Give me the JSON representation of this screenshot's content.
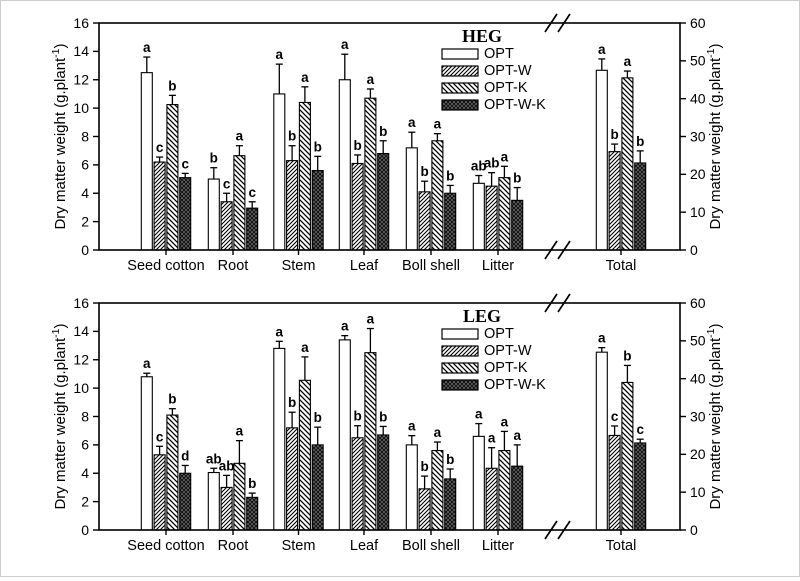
{
  "figure": {
    "background": "#ffffff",
    "border_color": "#cccccc",
    "line_color": "#000000"
  },
  "axes": {
    "left_label": {
      "main": "Dry matter weight (g.plant",
      "sup": "-1",
      "close": ")"
    },
    "right_label": {
      "main": "Dry matter weight (g.plant",
      "sup": "-1",
      "close": ")"
    },
    "left_ticks": [
      0,
      2,
      4,
      6,
      8,
      10,
      12,
      14,
      16
    ],
    "right_ticks": [
      0,
      10,
      20,
      30,
      40,
      50,
      60
    ],
    "left_range": [
      0,
      16
    ],
    "right_range": [
      0,
      60
    ],
    "axis_break_between": [
      "Litter",
      "Total"
    ]
  },
  "legend": {
    "items": [
      {
        "label": "OPT",
        "pattern": "solid-white"
      },
      {
        "label": "OPT-W",
        "pattern": "hatch-forward"
      },
      {
        "label": "OPT-K",
        "pattern": "hatch-back"
      },
      {
        "label": "OPT-W-K",
        "pattern": "dark-dotted"
      }
    ],
    "position": "upper-left-inside"
  },
  "chart_data": [
    {
      "type": "bar",
      "title": "HEG",
      "categories": [
        "Seed cotton",
        "Root",
        "Stem",
        "Leaf",
        "Boll shell",
        "Litter",
        "Total"
      ],
      "right_axis_category": "Total",
      "ylabel": "Dry matter weight (g.plant-1)",
      "y2label": "Dry matter weight (g.plant-1)",
      "ylim": [
        0,
        16
      ],
      "y2lim": [
        0,
        60
      ],
      "grid": false,
      "series": [
        {
          "name": "OPT",
          "values": [
            12.5,
            5.0,
            11.0,
            12.0,
            7.2,
            4.7,
            47.5
          ],
          "errors": [
            1.1,
            0.8,
            2.1,
            1.8,
            1.1,
            0.55,
            3.0
          ],
          "letters": [
            "a",
            "b",
            "a",
            "a",
            "a",
            "ab",
            "a"
          ]
        },
        {
          "name": "OPT-W",
          "values": [
            6.2,
            3.4,
            6.3,
            6.1,
            4.1,
            4.5,
            26.0
          ],
          "errors": [
            0.35,
            0.6,
            1.05,
            0.6,
            0.75,
            0.95,
            2.0
          ],
          "letters": [
            "c",
            "c",
            "b",
            "b",
            "b",
            "ab",
            "b"
          ]
        },
        {
          "name": "OPT-K",
          "values": [
            10.25,
            6.65,
            10.4,
            10.7,
            7.7,
            5.1,
            45.5
          ],
          "errors": [
            0.65,
            0.7,
            1.1,
            0.65,
            0.5,
            0.8,
            1.8
          ],
          "letters": [
            "b",
            "a",
            "a",
            "a",
            "a",
            "a",
            "a"
          ]
        },
        {
          "name": "OPT-W-K",
          "values": [
            5.1,
            2.95,
            5.6,
            6.8,
            4.0,
            3.5,
            23.0
          ],
          "errors": [
            0.3,
            0.45,
            1.0,
            0.9,
            0.55,
            0.9,
            3.2
          ],
          "letters": [
            "c",
            "c",
            "b",
            "b",
            "b",
            "b",
            "b"
          ]
        }
      ]
    },
    {
      "type": "bar",
      "title": "LEG",
      "categories": [
        "Seed cotton",
        "Root",
        "Stem",
        "Leaf",
        "Boll shell",
        "Litter",
        "Total"
      ],
      "right_axis_category": "Total",
      "ylabel": "Dry matter weight (g.plant-1)",
      "y2label": "Dry matter weight (g.plant-1)",
      "ylim": [
        0,
        16
      ],
      "y2lim": [
        0,
        60
      ],
      "grid": false,
      "series": [
        {
          "name": "OPT",
          "values": [
            10.8,
            4.05,
            12.8,
            13.4,
            6.0,
            6.6,
            47.0
          ],
          "errors": [
            0.25,
            0.3,
            0.5,
            0.3,
            0.65,
            0.9,
            1.2
          ],
          "letters": [
            "a",
            "ab",
            "a",
            "a",
            "a",
            "a",
            "a"
          ]
        },
        {
          "name": "OPT-W",
          "values": [
            5.3,
            3.0,
            7.2,
            6.5,
            2.9,
            4.35,
            25.0
          ],
          "errors": [
            0.6,
            0.85,
            1.1,
            0.85,
            0.9,
            1.45,
            2.5
          ],
          "letters": [
            "c",
            "ab",
            "b",
            "b",
            "b",
            "a",
            "c"
          ]
        },
        {
          "name": "OPT-K",
          "values": [
            8.1,
            4.7,
            10.55,
            12.5,
            5.6,
            5.6,
            39.0
          ],
          "errors": [
            0.45,
            1.6,
            1.65,
            1.7,
            0.6,
            1.35,
            4.5
          ],
          "letters": [
            "b",
            "a",
            "a",
            "a",
            "a",
            "a",
            "b"
          ]
        },
        {
          "name": "OPT-W-K",
          "values": [
            4.0,
            2.3,
            6.0,
            6.7,
            3.6,
            4.5,
            23.0
          ],
          "errors": [
            0.55,
            0.3,
            1.25,
            0.6,
            0.7,
            1.5,
            1.0
          ],
          "letters": [
            "d",
            "b",
            "b",
            "b",
            "b",
            "a",
            "c"
          ]
        }
      ]
    }
  ]
}
